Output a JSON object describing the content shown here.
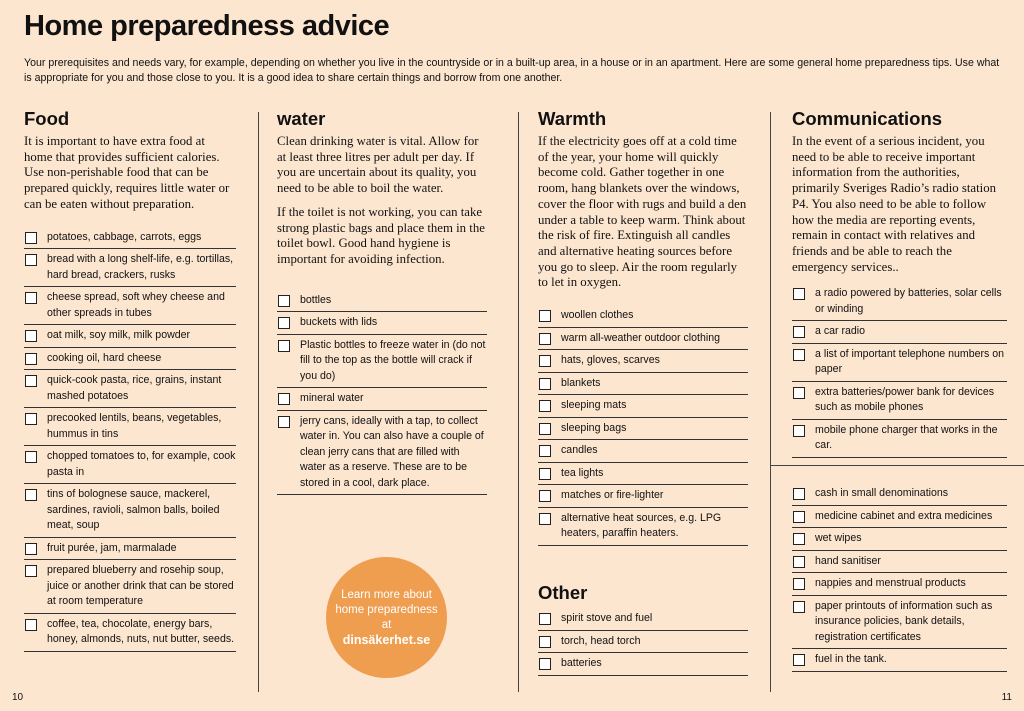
{
  "header": {
    "title": "Home preparedness advice",
    "intro": "Your prerequisites and needs vary, for example, depending on whether you live in the countryside or in a built-up area, in a house or in an apartment. Here are some general home preparedness tips. Use what is appropriate for you and those close to you. It is a good idea to share certain things and borrow from one another."
  },
  "columns": [
    {
      "heading": "Food",
      "paragraphs": [
        "It is important to have extra food at home that provides sufficient calories. Use non-perishable food that can be prepared quickly, requires little water or can be eaten without preparation."
      ],
      "checklist": [
        "potatoes, cabbage, carrots, eggs",
        "bread with a long shelf-life, e.g. tortillas, hard bread, crackers, rusks",
        "cheese spread, soft whey cheese and other spreads in tubes",
        "oat milk, soy milk, milk powder",
        "cooking oil, hard cheese",
        "quick-cook pasta, rice, grains, instant mashed potatoes",
        "precooked lentils, beans, vegetables, hummus in tins",
        "chopped tomatoes to, for example, cook pasta in",
        "tins of bolognese sauce, mackerel, sardines, ravioli, salmon balls, boiled meat, soup",
        "fruit purée, jam, marmalade",
        "prepared blueberry and rosehip soup, juice or another drink that can be stored at room temperature",
        "coffee, tea, chocolate, energy bars, honey, almonds, nuts, nut butter, seeds."
      ]
    },
    {
      "heading": "water",
      "paragraphs": [
        "Clean drinking water is vital. Allow for at least three litres per adult per day. If you are uncertain about its quality, you need to be able to boil the water.",
        "If the toilet is not working, you can take strong plastic bags and place them in the toilet bowl. Good hand hygiene is important for avoiding infection."
      ],
      "checklist": [
        "bottles",
        "buckets with lids",
        "Plastic bottles to freeze water in (do not fill to the top as the bottle will crack if you do)",
        "mineral water",
        "jerry cans, ideally with a tap, to collect water in. You can also have a couple of clean jerry cans that are filled with water as a reserve. These are to be stored in a cool, dark place."
      ]
    },
    {
      "heading": "Warmth",
      "paragraphs": [
        "If the electricity goes off at a cold time of the year, your home will quickly become cold. Gather together in one room, hang blankets over the windows, cover the floor with rugs and build a den under a table to keep warm. Think about the risk of fire. Extinguish all candles and alternative heating sources before you go to sleep. Air the room regularly to let in oxygen."
      ],
      "checklist": [
        "woollen clothes",
        "warm all-weather outdoor clothing",
        "hats, gloves, scarves",
        "blankets",
        "sleeping mats",
        "sleeping bags",
        "candles",
        "tea lights",
        "matches or fire-lighter",
        "alternative heat sources, e.g. LPG heaters, paraffin heaters."
      ]
    },
    {
      "heading": "Communications",
      "paragraphs": [
        "In the event of a serious incident, you need to be able to receive important information from the authorities, primarily Sveriges Radio’s radio station P4. You also need to be able to follow how the media are reporting events, remain in contact with relatives and friends and be able to reach the emergency services.."
      ],
      "checklist": [
        "a radio powered by batteries, solar cells or winding",
        "a car radio",
        "a list of important telephone numbers on paper",
        "extra batteries/power bank for devices such as mobile phones",
        "mobile phone charger that works in the car."
      ]
    }
  ],
  "other": {
    "heading": "Other",
    "checklist": [
      "spirit stove and fuel",
      "torch, head torch",
      "batteries"
    ]
  },
  "misc": {
    "checklist": [
      "cash in small denominations",
      "medicine cabinet and extra medicines",
      "wet wipes",
      "hand sanitiser",
      "nappies and menstrual products",
      "paper printouts of information such as insurance policies, bank details, registration certificates",
      "fuel in the tank."
    ]
  },
  "callout": {
    "lines": [
      "Learn more about",
      "home preparedness",
      "at"
    ],
    "link": "dinsäkerhet.se"
  },
  "page_numbers": [
    "10",
    "11"
  ]
}
